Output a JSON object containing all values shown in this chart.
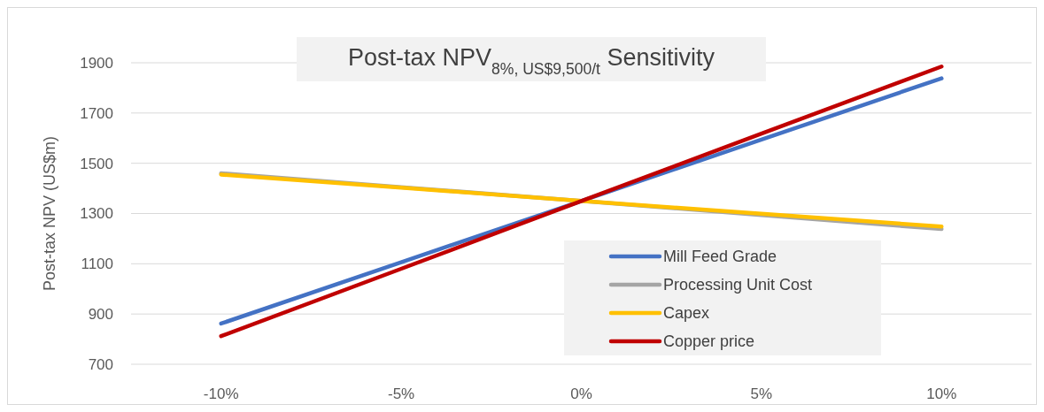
{
  "chart_data": {
    "type": "line",
    "title": "Post-tax NPV$_{8%, US$9,500/t}$ Sensitivity",
    "ylabel": "Post-tax NPV (US$m)",
    "categories": [
      "-10%",
      "-5%",
      "0%",
      "5%",
      "10%"
    ],
    "series": [
      {
        "name": "Mill Feed Grade",
        "color": "#4472c4",
        "values": [
          862,
          1106,
          1350,
          1594,
          1838
        ]
      },
      {
        "name": "Processing Unit Cost",
        "color": "#a5a5a5",
        "values": [
          1460,
          1405,
          1350,
          1294,
          1238
        ]
      },
      {
        "name": "Capex",
        "color": "#ffc000",
        "values": [
          1455,
          1403,
          1350,
          1299,
          1248
        ]
      },
      {
        "name": "Copper price",
        "color": "#c00000",
        "values": [
          812,
          1080,
          1350,
          1618,
          1885
        ]
      }
    ],
    "ylim": [
      700,
      1900
    ],
    "yticks": [
      700,
      900,
      1100,
      1300,
      1500,
      1700,
      1900
    ],
    "grid": "y",
    "legend": "bottom right",
    "marker": "none",
    "line_style": "solid"
  }
}
